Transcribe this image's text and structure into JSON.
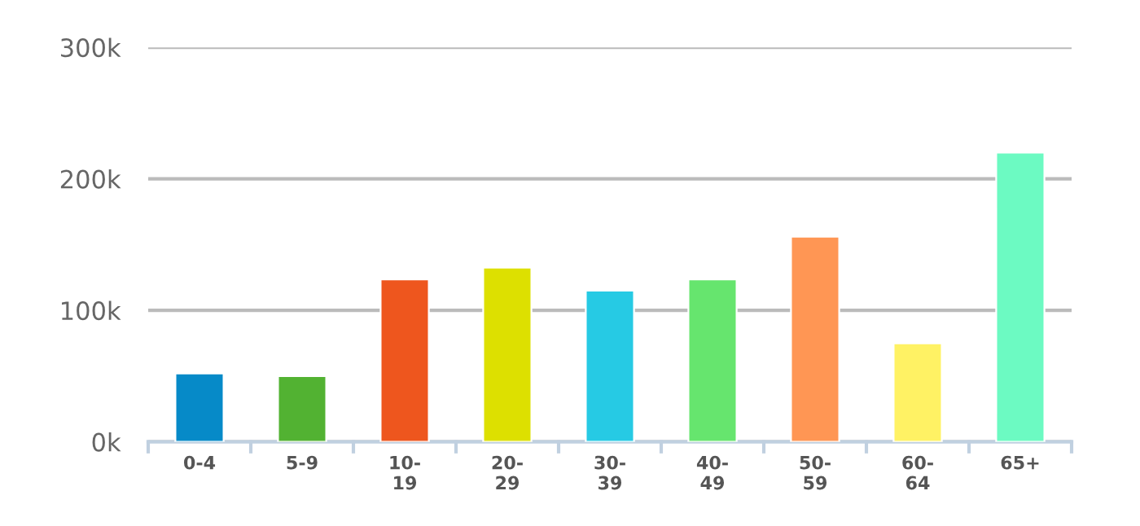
{
  "chart_data": {
    "type": "bar",
    "categories": [
      "0-4",
      "5-9",
      "10-19",
      "20-29",
      "30-39",
      "40-49",
      "50-59",
      "60-64",
      "65+"
    ],
    "values": [
      52000,
      50000,
      123500,
      132500,
      115000,
      123500,
      156000,
      75000,
      220000
    ],
    "colors": [
      "#068ac8",
      "#52b232",
      "#ee561e",
      "#dde000",
      "#26cae4",
      "#66e56e",
      "#ff9654",
      "#fff264",
      "#6cfac2"
    ],
    "ylim": [
      0,
      300000
    ],
    "yticks": [
      {
        "value": 0,
        "label": "0k"
      },
      {
        "value": 100000,
        "label": "100k"
      },
      {
        "value": 200000,
        "label": "200k"
      },
      {
        "value": 300000,
        "label": "300k"
      }
    ],
    "grid": "y",
    "legend": false
  }
}
